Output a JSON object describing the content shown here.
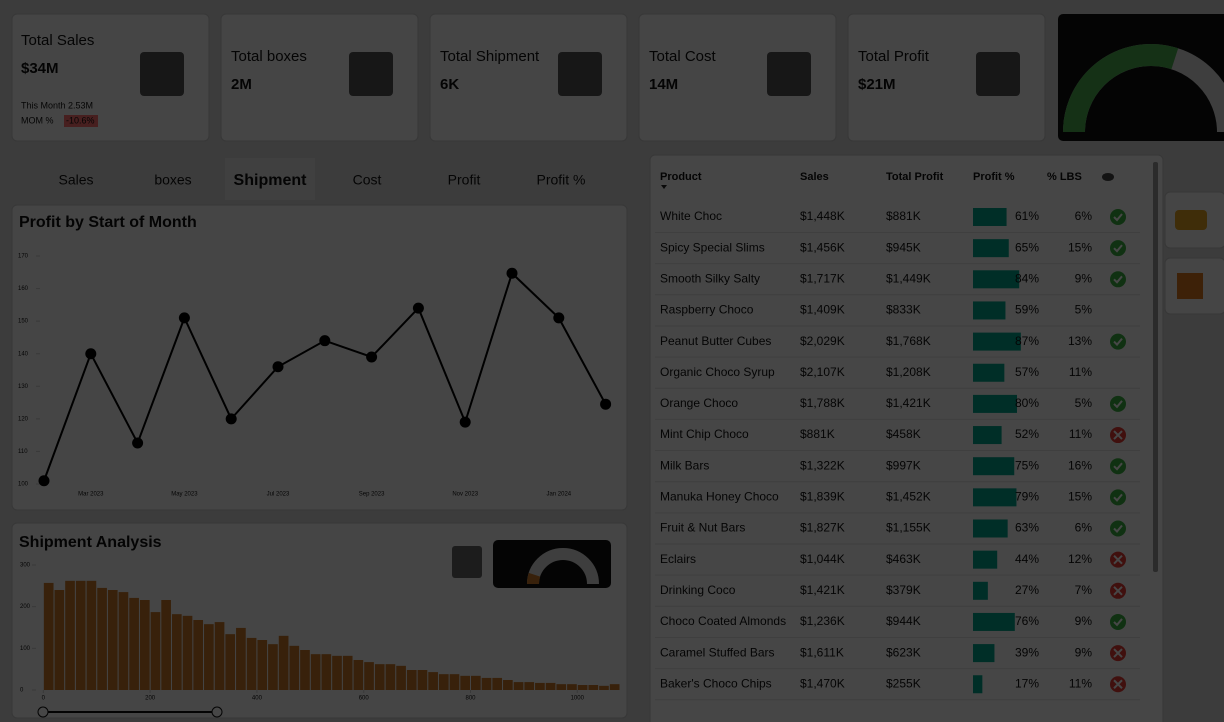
{
  "kpis": [
    {
      "title": "Total Sales",
      "value": "$34M",
      "this_month": "This Month 2.53M",
      "mom": "MOM %",
      "mom_value": "-10.6%"
    },
    {
      "title": "Total boxes",
      "value": "2M"
    },
    {
      "title": "Total Shipment",
      "value": "6K"
    },
    {
      "title": "Total Cost",
      "value": "14M"
    },
    {
      "title": "Total Profit",
      "value": "$21M"
    }
  ],
  "gauge": {
    "value": 60,
    "label": "60%",
    "color": "#4caf50"
  },
  "tabs": [
    "Sales",
    "boxes",
    "Shipment",
    "Cost",
    "Profit",
    "Profit %"
  ],
  "active_tab": 2,
  "line_chart": {
    "type": "line",
    "title": "Profit by Start of Month",
    "categories": [
      null,
      "Mar 2023",
      null,
      "May 2023",
      null,
      "Jul 2023",
      null,
      "Sep 2023",
      null,
      "Nov 2023",
      null,
      "Jan 2024",
      null
    ],
    "values": [
      101,
      140,
      112.6,
      151,
      120,
      136,
      144,
      139,
      154,
      119,
      164.7,
      151,
      124.5
    ],
    "ylim": [
      100,
      170
    ],
    "yticks": [
      100,
      110,
      120,
      130,
      140,
      150,
      160,
      170
    ],
    "color": "#000000"
  },
  "histogram": {
    "type": "histogram",
    "title": "Shipment Analysis",
    "color": "#c8782a",
    "bins": [
      0,
      20,
      40,
      60,
      80,
      100,
      120,
      140,
      160,
      180,
      200,
      220,
      240,
      260,
      280,
      300,
      320,
      340,
      360,
      380,
      400,
      420,
      440,
      460,
      480,
      500,
      520,
      540,
      560,
      580,
      600,
      620,
      640,
      660,
      680,
      700,
      720,
      740,
      760,
      780,
      800,
      820,
      840,
      860,
      880,
      900,
      920,
      940,
      960,
      980,
      1000,
      1020,
      1040,
      1060,
      1080
    ],
    "counts": [
      257,
      240,
      262,
      262,
      262,
      245,
      240,
      235,
      221,
      216,
      187,
      216,
      182,
      178,
      168,
      158,
      163,
      134,
      149,
      125,
      120,
      110,
      130,
      106,
      96,
      86,
      86,
      82,
      82,
      72,
      67,
      62,
      62,
      58,
      48,
      48,
      43,
      38,
      38,
      34,
      34,
      29,
      29,
      24,
      19,
      19,
      17,
      17,
      14,
      14,
      12,
      12,
      10,
      14
    ],
    "xlim": [
      -10,
      1080
    ],
    "xticks": [
      0,
      200,
      400,
      600,
      800,
      1000
    ],
    "ylim": [
      0,
      300
    ],
    "yticks": [
      0,
      100,
      200,
      300
    ],
    "gauge": {
      "value": 10,
      "label": "10%",
      "color": "#c8782a"
    }
  },
  "table": {
    "columns": [
      "Product",
      "Sales",
      "Total Profit",
      "Profit %",
      "% LBS"
    ],
    "bar_color": "#00a48c",
    "rows": [
      {
        "product": "White Choc",
        "sales": "$1,448K",
        "total_profit": "$881K",
        "profit_pct": 61,
        "profit_pct_label": "61%",
        "lbs": "6%",
        "status": "ok"
      },
      {
        "product": "Spicy Special Slims",
        "sales": "$1,456K",
        "total_profit": "$945K",
        "profit_pct": 65,
        "profit_pct_label": "65%",
        "lbs": "15%",
        "status": "ok"
      },
      {
        "product": "Smooth Silky Salty",
        "sales": "$1,717K",
        "total_profit": "$1,449K",
        "profit_pct": 84,
        "profit_pct_label": "84%",
        "lbs": "9%",
        "status": "ok"
      },
      {
        "product": "Raspberry Choco",
        "sales": "$1,409K",
        "total_profit": "$833K",
        "profit_pct": 59,
        "profit_pct_label": "59%",
        "lbs": "5%",
        "status": null
      },
      {
        "product": "Peanut Butter Cubes",
        "sales": "$2,029K",
        "total_profit": "$1,768K",
        "profit_pct": 87,
        "profit_pct_label": "87%",
        "lbs": "13%",
        "status": "ok"
      },
      {
        "product": "Organic Choco Syrup",
        "sales": "$2,107K",
        "total_profit": "$1,208K",
        "profit_pct": 57,
        "profit_pct_label": "57%",
        "lbs": "11%",
        "status": null
      },
      {
        "product": "Orange Choco",
        "sales": "$1,788K",
        "total_profit": "$1,421K",
        "profit_pct": 80,
        "profit_pct_label": "80%",
        "lbs": "5%",
        "status": "ok"
      },
      {
        "product": "Mint Chip Choco",
        "sales": "$881K",
        "total_profit": "$458K",
        "profit_pct": 52,
        "profit_pct_label": "52%",
        "lbs": "11%",
        "status": "bad"
      },
      {
        "product": "Milk Bars",
        "sales": "$1,322K",
        "total_profit": "$997K",
        "profit_pct": 75,
        "profit_pct_label": "75%",
        "lbs": "16%",
        "status": "ok"
      },
      {
        "product": "Manuka Honey Choco",
        "sales": "$1,839K",
        "total_profit": "$1,452K",
        "profit_pct": 79,
        "profit_pct_label": "79%",
        "lbs": "15%",
        "status": "ok"
      },
      {
        "product": "Fruit & Nut Bars",
        "sales": "$1,827K",
        "total_profit": "$1,155K",
        "profit_pct": 63,
        "profit_pct_label": "63%",
        "lbs": "6%",
        "status": "ok"
      },
      {
        "product": "Eclairs",
        "sales": "$1,044K",
        "total_profit": "$463K",
        "profit_pct": 44,
        "profit_pct_label": "44%",
        "lbs": "12%",
        "status": "bad"
      },
      {
        "product": "Drinking Coco",
        "sales": "$1,421K",
        "total_profit": "$379K",
        "profit_pct": 27,
        "profit_pct_label": "27%",
        "lbs": "7%",
        "status": "bad"
      },
      {
        "product": "Choco Coated Almonds",
        "sales": "$1,236K",
        "total_profit": "$944K",
        "profit_pct": 76,
        "profit_pct_label": "76%",
        "lbs": "9%",
        "status": "ok"
      },
      {
        "product": "Caramel Stuffed Bars",
        "sales": "$1,611K",
        "total_profit": "$623K",
        "profit_pct": 39,
        "profit_pct_label": "39%",
        "lbs": "9%",
        "status": "bad"
      },
      {
        "product": "Baker's Choco Chips",
        "sales": "$1,470K",
        "total_profit": "$255K",
        "profit_pct": 17,
        "profit_pct_label": "17%",
        "lbs": "11%",
        "status": "bad"
      }
    ]
  }
}
